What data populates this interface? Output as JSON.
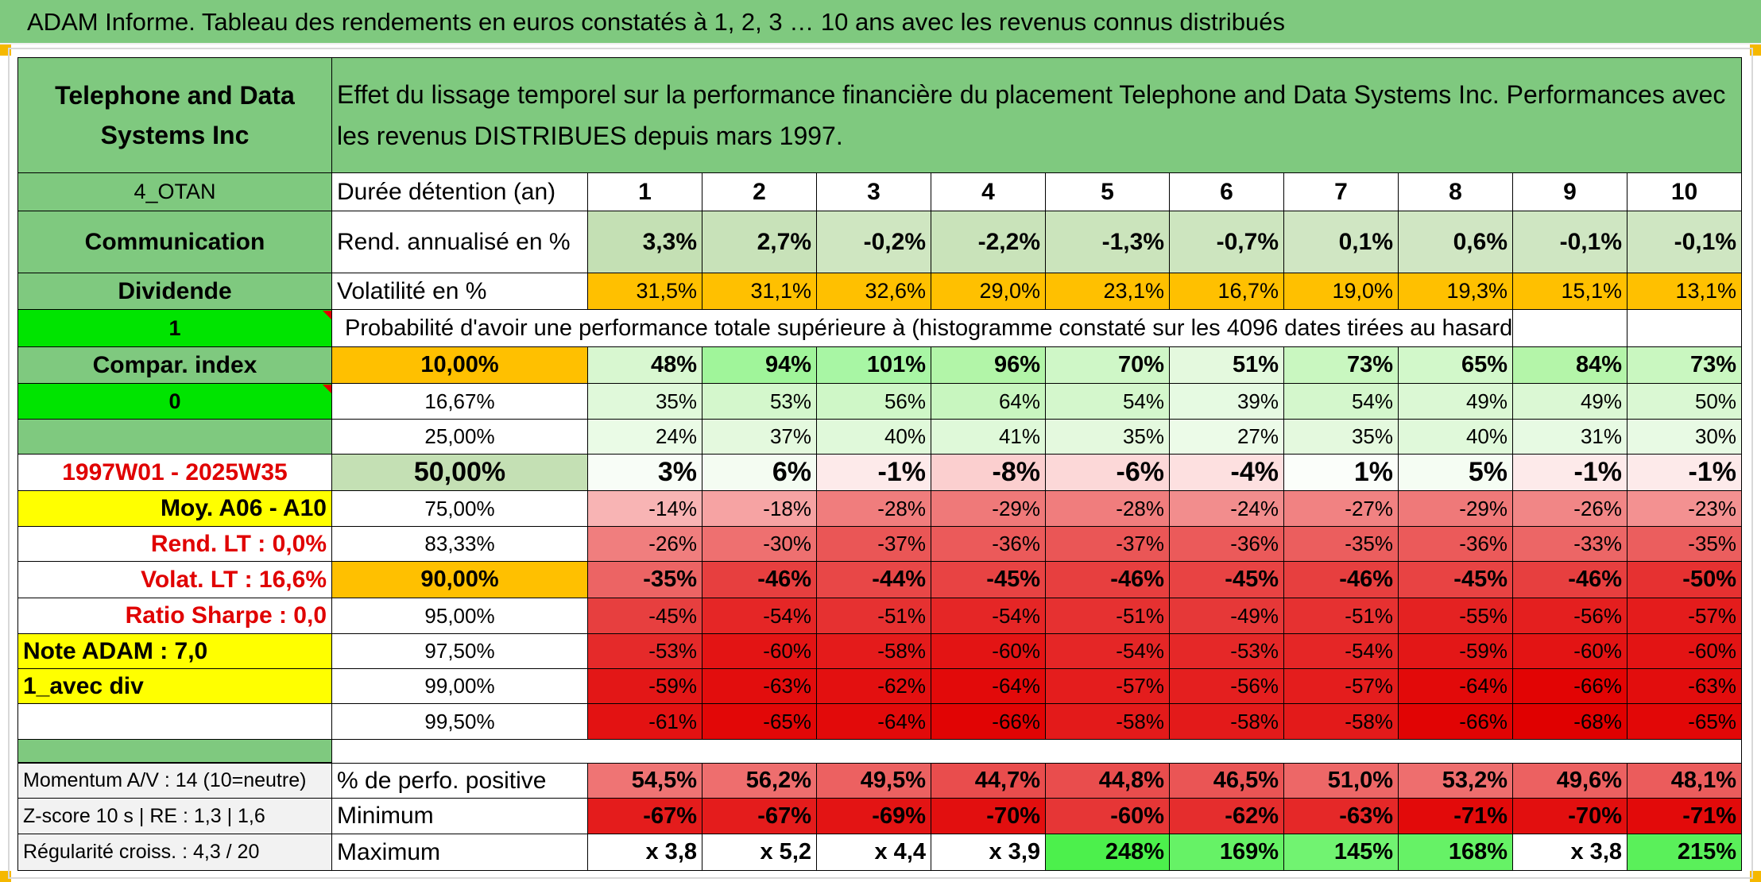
{
  "title": "ADAM Informe. Tableau des rendements en euros constatés à 1, 2, 3 … 10 ans avec les revenus connus distribués",
  "left": {
    "company": "Telephone and Data Systems Inc",
    "code": "4_OTAN",
    "sector": "Communication",
    "type": "Dividende",
    "flag1": "1",
    "compar_index": "Compar. index",
    "flag0": "0",
    "period": "1997W01 - 2025W35",
    "moy": "Moy. A06 - A10",
    "rend_lt": "Rend. LT :   0,0%",
    "volat_lt": "Volat. LT :   16,6%",
    "sharpe": "Ratio Sharpe :    0,0",
    "note": "Note ADAM : 7,0",
    "avec_div": "1_avec div",
    "momentum": "Momentum A/V : 14 (10=neutre)",
    "zscore": "Z-score 10 s | RE : 1,3 | 1,6",
    "regularite": "Régularité croiss. : 4,3 / 20"
  },
  "header": "Effet du lissage temporel sur la performance financière du placement Telephone and Data Systems Inc. Performances avec les revenus DISTRIBUES depuis mars 1997.",
  "labels": {
    "duree": "Durée détention (an)",
    "rend": "Rend. annualisé en %",
    "volat": "Volatilité en %",
    "proba": "Probabilité d'avoir une performance totale supérieure à (histogramme constaté sur les 4096 dates tirées au hasard)",
    "pct_pos": "% de perfo. positive",
    "minimum": "Minimum",
    "maximum": "Maximum"
  },
  "years": [
    "1",
    "2",
    "3",
    "4",
    "5",
    "6",
    "7",
    "8",
    "9",
    "10"
  ],
  "rend": [
    "3,3%",
    "2,7%",
    "-0,2%",
    "-2,2%",
    "-1,3%",
    "-0,7%",
    "0,1%",
    "0,6%",
    "-0,1%",
    "-0,1%"
  ],
  "volat": [
    "31,5%",
    "31,1%",
    "32,6%",
    "29,0%",
    "23,1%",
    "16,7%",
    "19,0%",
    "19,3%",
    "15,1%",
    "13,1%"
  ],
  "percentiles": [
    {
      "p": "10,00%",
      "v": [
        "48%",
        "94%",
        "101%",
        "96%",
        "70%",
        "51%",
        "73%",
        "65%",
        "84%",
        "73%"
      ]
    },
    {
      "p": "16,67%",
      "v": [
        "35%",
        "53%",
        "56%",
        "64%",
        "54%",
        "39%",
        "54%",
        "49%",
        "49%",
        "50%"
      ]
    },
    {
      "p": "25,00%",
      "v": [
        "24%",
        "37%",
        "40%",
        "41%",
        "35%",
        "27%",
        "35%",
        "40%",
        "31%",
        "30%"
      ]
    },
    {
      "p": "50,00%",
      "v": [
        "3%",
        "6%",
        "-1%",
        "-8%",
        "-6%",
        "-4%",
        "1%",
        "5%",
        "-1%",
        "-1%"
      ]
    },
    {
      "p": "75,00%",
      "v": [
        "-14%",
        "-18%",
        "-28%",
        "-29%",
        "-28%",
        "-24%",
        "-27%",
        "-29%",
        "-26%",
        "-23%"
      ]
    },
    {
      "p": "83,33%",
      "v": [
        "-26%",
        "-30%",
        "-37%",
        "-36%",
        "-37%",
        "-36%",
        "-35%",
        "-36%",
        "-33%",
        "-35%"
      ]
    },
    {
      "p": "90,00%",
      "v": [
        "-35%",
        "-46%",
        "-44%",
        "-45%",
        "-46%",
        "-45%",
        "-46%",
        "-45%",
        "-46%",
        "-50%"
      ]
    },
    {
      "p": "95,00%",
      "v": [
        "-45%",
        "-54%",
        "-51%",
        "-54%",
        "-51%",
        "-49%",
        "-51%",
        "-55%",
        "-56%",
        "-57%"
      ]
    },
    {
      "p": "97,50%",
      "v": [
        "-53%",
        "-60%",
        "-58%",
        "-60%",
        "-54%",
        "-53%",
        "-54%",
        "-59%",
        "-60%",
        "-60%"
      ]
    },
    {
      "p": "99,00%",
      "v": [
        "-59%",
        "-63%",
        "-62%",
        "-64%",
        "-57%",
        "-56%",
        "-57%",
        "-64%",
        "-66%",
        "-63%"
      ]
    },
    {
      "p": "99,50%",
      "v": [
        "-61%",
        "-65%",
        "-64%",
        "-66%",
        "-58%",
        "-58%",
        "-58%",
        "-66%",
        "-68%",
        "-65%"
      ]
    }
  ],
  "pct_pos": [
    "54,5%",
    "56,2%",
    "49,5%",
    "44,7%",
    "44,8%",
    "46,5%",
    "51,0%",
    "53,2%",
    "49,6%",
    "48,1%"
  ],
  "minimum": [
    "-67%",
    "-67%",
    "-69%",
    "-70%",
    "-60%",
    "-62%",
    "-63%",
    "-71%",
    "-70%",
    "-71%"
  ],
  "maximum": [
    "x 3,8",
    "x 5,2",
    "x 4,4",
    "x 3,9",
    "248%",
    "169%",
    "145%",
    "168%",
    "x 3,8",
    "215%"
  ],
  "colors": {
    "header_green": "#7fc97f",
    "flag_green": "#00e400",
    "yellow": "#ffff00",
    "orange": "#ffc000",
    "red_text": "#e00000",
    "light_green": "#c4e0b4"
  }
}
